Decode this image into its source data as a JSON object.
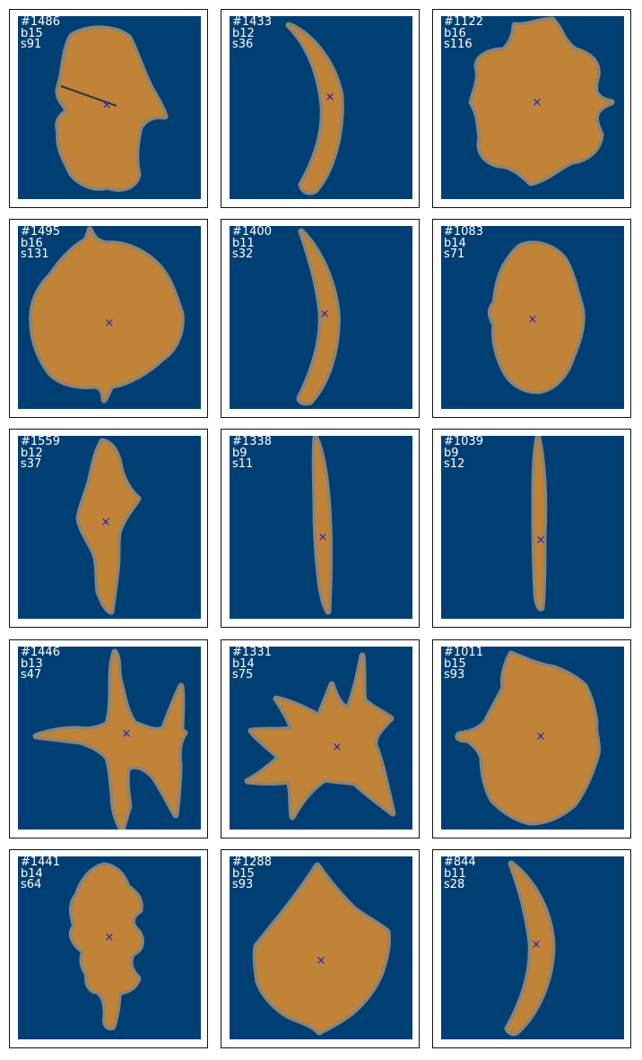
{
  "colors": {
    "background": "#003f73",
    "leaf_fill": "#c08338",
    "leaf_edge": "#8a8478",
    "centroid_marker": "#1b1ad6",
    "label_text": "#ffffff",
    "frame": "#111111"
  },
  "marker_glyph": "×",
  "panels": [
    {
      "id": "#1486",
      "b": "b15",
      "s": "s91"
    },
    {
      "id": "#1433",
      "b": "b12",
      "s": "s36"
    },
    {
      "id": "#1122",
      "b": "b16",
      "s": "s116"
    },
    {
      "id": "#1495",
      "b": "b16",
      "s": "s131"
    },
    {
      "id": "#1400",
      "b": "b11",
      "s": "s32"
    },
    {
      "id": "#1083",
      "b": "b14",
      "s": "s71"
    },
    {
      "id": "#1559",
      "b": "b12",
      "s": "s37"
    },
    {
      "id": "#1338",
      "b": "b9",
      "s": "s11"
    },
    {
      "id": "#1039",
      "b": "b9",
      "s": "s12"
    },
    {
      "id": "#1446",
      "b": "b13",
      "s": "s47"
    },
    {
      "id": "#1331",
      "b": "b14",
      "s": "s75"
    },
    {
      "id": "#1011",
      "b": "b15",
      "s": "s93"
    },
    {
      "id": "#1441",
      "b": "b14",
      "s": "s64"
    },
    {
      "id": "#1288",
      "b": "b15",
      "s": "s93"
    },
    {
      "id": "#844",
      "b": "b11",
      "s": "s28"
    }
  ]
}
